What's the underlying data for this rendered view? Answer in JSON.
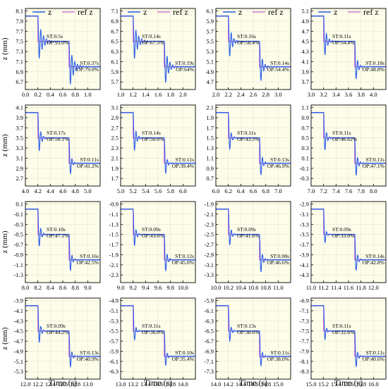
{
  "chart_data": {
    "type": "line",
    "legend": {
      "placement": "top",
      "entries": [
        {
          "name": "z",
          "color": "#2b5fe8"
        },
        {
          "name": "ref z",
          "color": "#d479d4"
        }
      ]
    },
    "ylabel": "z (mm)",
    "xlabel": "Time (s)",
    "colors": {
      "z": "#2b5fe8",
      "ref": "#d479d4",
      "plot_bg": "#fdfdea",
      "grid": "#d0d0b8"
    },
    "grid": true,
    "panels": [
      {
        "x0": 0.0,
        "xlim": [
          0.0,
          1.2
        ],
        "ylim": [
          6.55,
          8.15
        ],
        "xticks": [
          "0.0",
          "0.2",
          "0.4",
          "0.6",
          "0.8",
          "1.0"
        ],
        "yticks": [
          "8.1",
          "7.9",
          "7.7",
          "7.5",
          "7.3",
          "7.1",
          "6.9",
          "6.7"
        ],
        "steps": [
          8.0,
          7.5,
          7.0
        ],
        "ann1": {
          "st": "ST:0.5s",
          "op": "OP:93.0%"
        },
        "ann2": {
          "st": "ST:0.37s",
          "op": "OP:79.0%"
        }
      },
      {
        "x0": 1.0,
        "xlim": [
          1.0,
          2.2
        ],
        "ylim": [
          5.55,
          7.15
        ],
        "xticks": [
          "1.0",
          "1.2",
          "1.4",
          "1.6",
          "1.8",
          "2.0"
        ],
        "yticks": [
          "7.1",
          "6.9",
          "6.7",
          "6.5",
          "6.3",
          "6.1",
          "5.9",
          "5.7"
        ],
        "steps": [
          7.0,
          6.5,
          6.0
        ],
        "ann1": {
          "st": "ST:0.14s",
          "op": "OP:67.5%"
        },
        "ann2": {
          "st": "ST:0.19s",
          "op": "OP:64%"
        }
      },
      {
        "x0": 2.0,
        "xlim": [
          2.0,
          3.2
        ],
        "ylim": [
          4.55,
          6.15
        ],
        "xticks": [
          "2.0",
          "2.2",
          "2.4",
          "2.6",
          "2.8",
          "3.0"
        ],
        "yticks": [
          "6.1",
          "5.9",
          "5.7",
          "5.5",
          "5.3",
          "5.1",
          "4.9",
          "4.7"
        ],
        "steps": [
          6.0,
          5.5,
          5.0
        ],
        "ann1": {
          "st": "ST:0.16s",
          "op": "OP:58.4%"
        },
        "ann2": {
          "st": "ST:0.14s",
          "op": "OP:54.4%"
        }
      },
      {
        "x0": 3.0,
        "xlim": [
          3.0,
          4.2
        ],
        "ylim": [
          3.55,
          5.15
        ],
        "xticks": [
          "3.0",
          "3.2",
          "3.4",
          "3.6",
          "3.8",
          "4.0"
        ],
        "yticks": [
          "5.1",
          "4.9",
          "4.7",
          "4.5",
          "4.3",
          "4.1",
          "3.9",
          "3.7"
        ],
        "steps": [
          5.0,
          4.5,
          4.0
        ],
        "ann1": {
          "st": "ST:0.11s",
          "op": "OP:54.4%"
        },
        "ann2": {
          "st": "ST:0.18s",
          "op": "OP:48.8%"
        }
      },
      {
        "x0": 4.0,
        "xlim": [
          4.0,
          5.2
        ],
        "ylim": [
          2.55,
          4.15
        ],
        "xticks": [
          "4.0",
          "4.2",
          "4.4",
          "4.6",
          "4.8",
          "5.0"
        ],
        "yticks": [
          "4.1",
          "3.9",
          "3.7",
          "3.5",
          "3.3",
          "3.1",
          "2.9",
          "2.7"
        ],
        "steps": [
          4.0,
          3.5,
          3.0
        ],
        "ann1": {
          "st": "ST:0.17s",
          "op": "OP:50.1%"
        },
        "ann2": {
          "st": "ST:0.11s",
          "op": "OP:41.2%"
        }
      },
      {
        "x0": 5.0,
        "xlim": [
          5.0,
          6.2
        ],
        "ylim": [
          1.55,
          3.15
        ],
        "xticks": [
          "5.0",
          "5.2",
          "5.4",
          "5.6",
          "5.8",
          "6.0"
        ],
        "yticks": [
          "3.1",
          "2.9",
          "2.7",
          "2.5",
          "2.3",
          "2.1",
          "1.9",
          "1.7"
        ],
        "steps": [
          3.0,
          2.5,
          2.0
        ],
        "ann1": {
          "st": "ST:0.14s",
          "op": "OP:50.6%"
        },
        "ann2": {
          "st": "ST:0.11s",
          "op": "OP:39.4%"
        }
      },
      {
        "x0": 6.0,
        "xlim": [
          6.0,
          7.2
        ],
        "ylim": [
          0.55,
          2.15
        ],
        "xticks": [
          "6.0",
          "6.2",
          "6.4",
          "6.6",
          "6.8",
          "7.0"
        ],
        "yticks": [
          "2.1",
          "1.9",
          "1.7",
          "1.5",
          "1.3",
          "1.1",
          "0.9",
          "0.7"
        ],
        "steps": [
          2.0,
          1.5,
          1.0
        ],
        "ann1": {
          "st": "ST:0.11s",
          "op": "OP:43.5%"
        },
        "ann2": {
          "st": "ST:0.13s",
          "op": "OP:46.9%"
        }
      },
      {
        "x0": 7.0,
        "xlim": [
          7.0,
          8.2
        ],
        "ylim": [
          -0.45,
          1.15
        ],
        "xticks": [
          "7.0",
          "7.2",
          "7.4",
          "7.6",
          "7.8",
          "8.0"
        ],
        "yticks": [
          "1.1",
          "0.9",
          "0.7",
          "0.5",
          "0.3",
          "0.1",
          "-0.1",
          "-0.3"
        ],
        "steps": [
          1.0,
          0.5,
          0.0
        ],
        "ann1": {
          "st": "ST:0.11s",
          "op": "OP:46.62%"
        },
        "ann2": {
          "st": "ST:0.11s",
          "op": "OP:47.1%"
        }
      },
      {
        "x0": 8.0,
        "xlim": [
          8.0,
          9.2
        ],
        "ylim": [
          -1.45,
          0.15
        ],
        "xticks": [
          "8.0",
          "8.2",
          "8.4",
          "8.6",
          "8.8",
          "9.0"
        ],
        "yticks": [
          "0.1",
          "-0.1",
          "-0.3",
          "-0.5",
          "-0.7",
          "-0.9",
          "-1.1",
          "-1.3"
        ],
        "steps": [
          0.0,
          -0.5,
          -1.0
        ],
        "ann1": {
          "st": "ST:0.10s",
          "op": "OP:47.1%"
        },
        "ann2": {
          "st": "ST:0.16s",
          "op": "OP:42.5%"
        }
      },
      {
        "x0": 9.0,
        "xlim": [
          9.0,
          10.2
        ],
        "ylim": [
          -2.45,
          -0.85
        ],
        "xticks": [
          "9.0",
          "9.2",
          "9.4",
          "9.6",
          "9.8",
          "10.0"
        ],
        "yticks": [
          "-0.9",
          "-1.1",
          "-1.3",
          "-1.5",
          "-1.7",
          "-1.9",
          "-2.1",
          "-2.3"
        ],
        "steps": [
          -1.0,
          -1.5,
          -2.0
        ],
        "ann1": {
          "st": "ST:0.09s",
          "op": "OP:43.6%"
        },
        "ann2": {
          "st": "ST:0.12s",
          "op": "OP:45.0%"
        }
      },
      {
        "x0": 10.0,
        "xlim": [
          10.0,
          11.2
        ],
        "ylim": [
          -3.45,
          -1.85
        ],
        "xticks": [
          "10.0",
          "10.2",
          "10.4",
          "10.6",
          "10.8",
          "11.0"
        ],
        "yticks": [
          "-1.9",
          "-2.1",
          "-2.3",
          "-2.5",
          "-2.7",
          "-2.9",
          "-3.1",
          "-3.3"
        ],
        "steps": [
          -2.0,
          -2.5,
          -3.0
        ],
        "ann1": {
          "st": "ST:0.09s",
          "op": "OP:41.6%"
        },
        "ann2": {
          "st": "ST:0.08s",
          "op": "OP:46.6%"
        }
      },
      {
        "x0": 11.0,
        "xlim": [
          11.0,
          12.2
        ],
        "ylim": [
          -4.45,
          -2.85
        ],
        "xticks": [
          "11.0",
          "11.2",
          "11.4",
          "11.6",
          "11.8",
          "12.0"
        ],
        "yticks": [
          "-2.9",
          "-3.1",
          "-3.3",
          "-3.5",
          "-3.7",
          "-3.9",
          "-4.1",
          "-4.3"
        ],
        "steps": [
          -3.0,
          -3.5,
          -4.0
        ],
        "ann1": {
          "st": "ST:0.09s",
          "op": "OP:33.0%"
        },
        "ann2": {
          "st": "ST:0.14s",
          "op": "OP:42.8%"
        }
      },
      {
        "x0": 12.0,
        "xlim": [
          12.0,
          13.2
        ],
        "ylim": [
          -5.45,
          -3.85
        ],
        "xticks": [
          "12.0",
          "12.2",
          "12.4",
          "12.6",
          "12.8",
          "13.0"
        ],
        "yticks": [
          "-3.9",
          "-4.1",
          "-4.3",
          "-4.5",
          "-4.7",
          "-4.9",
          "-5.1",
          "-5.3"
        ],
        "steps": [
          -4.0,
          -4.5,
          -5.0
        ],
        "ann1": {
          "st": "ST:0.09s",
          "op": "OP:44.2%"
        },
        "ann2": {
          "st": "ST:0.13s",
          "op": "OP:40.9%"
        }
      },
      {
        "x0": 13.0,
        "xlim": [
          13.0,
          14.2
        ],
        "ylim": [
          -6.45,
          -4.85
        ],
        "xticks": [
          "13.0",
          "13.2",
          "13.4",
          "13.6",
          "13.8",
          "14.0"
        ],
        "yticks": [
          "-4.9",
          "-5.1",
          "-5.3",
          "-5.5",
          "-5.7",
          "-5.9",
          "-6.1",
          "-6.3"
        ],
        "steps": [
          -5.0,
          -5.5,
          -6.0
        ],
        "ann1": {
          "st": "ST:0.11s",
          "op": "OP:36.0%"
        },
        "ann2": {
          "st": "ST:0.10s",
          "op": "OP:35.4%"
        }
      },
      {
        "x0": 14.0,
        "xlim": [
          14.0,
          15.2
        ],
        "ylim": [
          -7.45,
          -5.85
        ],
        "xticks": [
          "14.0",
          "14.2",
          "14.4",
          "14.6",
          "14.8",
          "15.0"
        ],
        "yticks": [
          "-5.9",
          "-6.1",
          "-6.3",
          "-6.5",
          "-6.7",
          "-6.9",
          "-7.1",
          "-7.3"
        ],
        "steps": [
          -6.0,
          -6.5,
          -7.0
        ],
        "ann1": {
          "st": "ST:0.13s",
          "op": "OP:38.6%"
        },
        "ann2": {
          "st": "ST:0.11s",
          "op": "OP:38.0%"
        }
      },
      {
        "x0": 15.0,
        "xlim": [
          15.0,
          16.2
        ],
        "ylim": [
          -8.45,
          -6.85
        ],
        "xticks": [
          "15.0",
          "15.2",
          "15.4",
          "15.6",
          "15.8",
          "16.0"
        ],
        "yticks": [
          "-6.9",
          "-7.1",
          "-7.3",
          "-7.5",
          "-7.7",
          "-7.9",
          "-8.1",
          "-8.3"
        ],
        "steps": [
          -7.0,
          -7.5,
          -8.0
        ],
        "ann1": {
          "st": "ST:0.11s",
          "op": "OP:32.6%"
        },
        "ann2": {
          "st": "ST:0.11s",
          "op": "OP:40.6%"
        }
      }
    ]
  }
}
